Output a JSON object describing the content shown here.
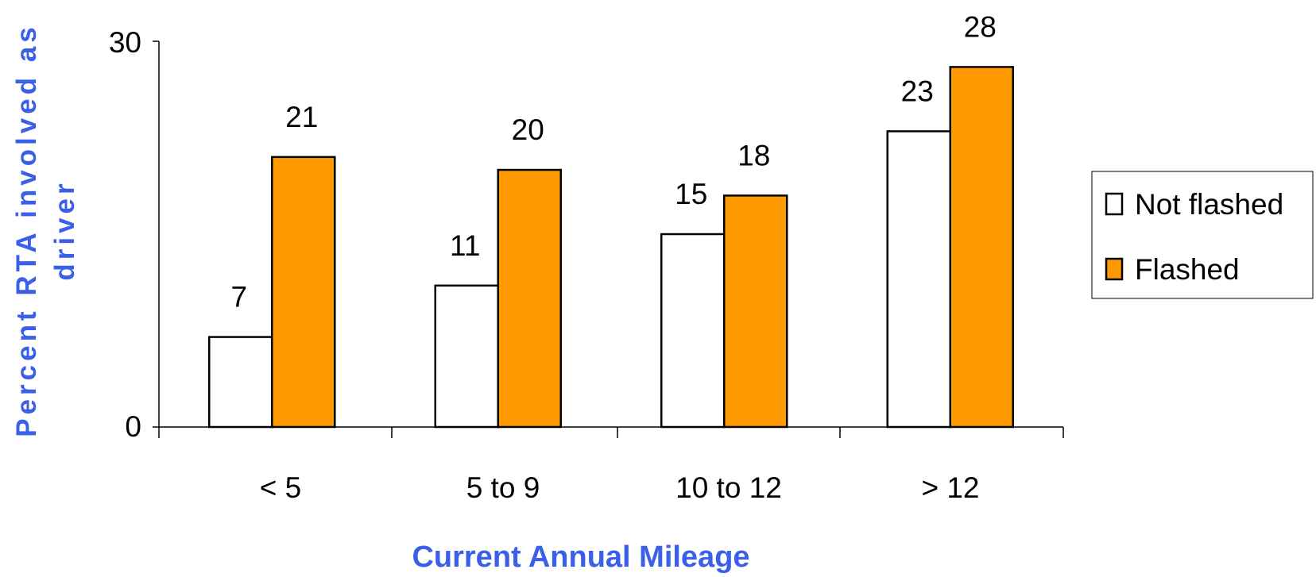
{
  "chart_data": {
    "type": "bar",
    "title": "",
    "xlabel": "Current Annual Mileage",
    "ylabel": "Percent RTA involved as driver",
    "ylabel_lines": [
      "Percent RTA involved as",
      "driver"
    ],
    "categories": [
      "< 5",
      "5 to 9",
      "10 to 12",
      "> 12"
    ],
    "series": [
      {
        "name": "Not flashed",
        "values": [
          7,
          11,
          15,
          23
        ],
        "color": "#ffffff",
        "stroke": "#000000"
      },
      {
        "name": "Flashed",
        "values": [
          21,
          20,
          18,
          28
        ],
        "color": "#ff9900",
        "stroke": "#000000"
      }
    ],
    "ylim": [
      0,
      30
    ],
    "yticks": [
      "0",
      "30"
    ],
    "grid": false,
    "legend": "right",
    "axis_title_color": "#3a5fe8"
  }
}
